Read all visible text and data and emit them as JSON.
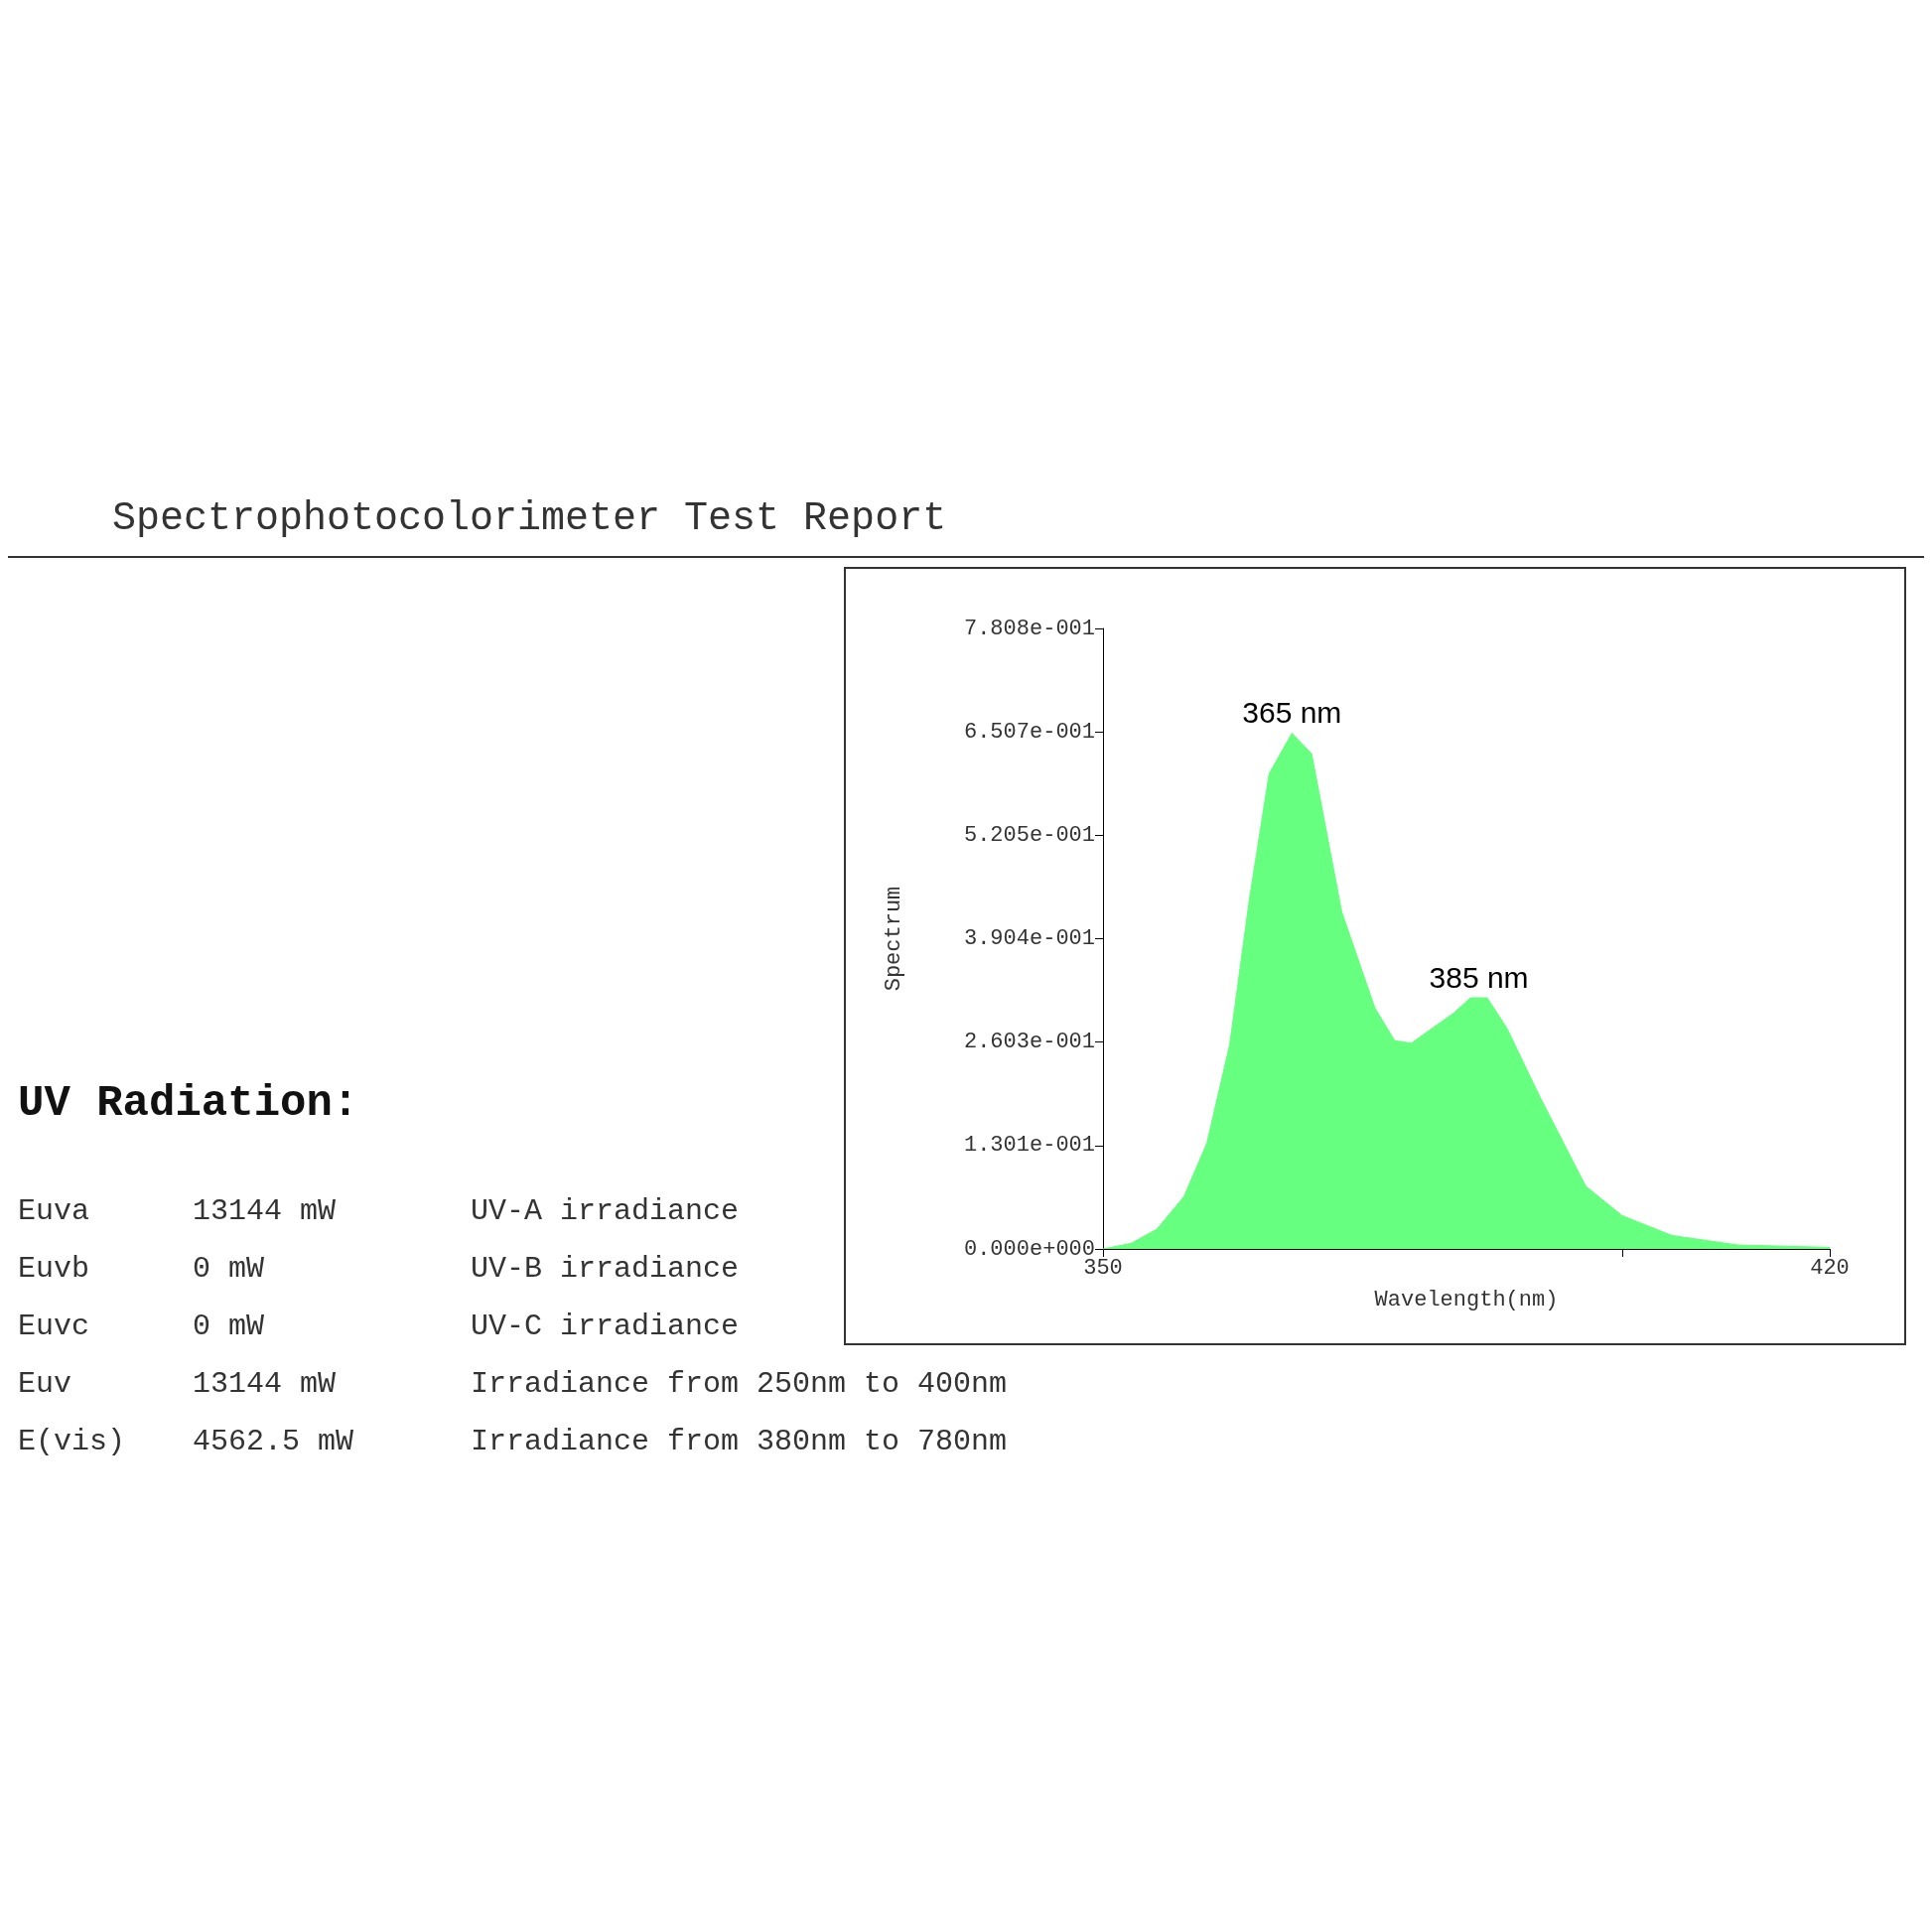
{
  "chart_data": {
    "type": "area",
    "title": "Spectrophotocolorimeter Test Report",
    "xlabel": "Wavelength(nm)",
    "ylabel": "Spectrum",
    "x": [
      350,
      352.7,
      355.2,
      357.8,
      360,
      362.2,
      364.1,
      366,
      368.2,
      370.1,
      373,
      376.2,
      378.1,
      379.7,
      383.8,
      385.4,
      387,
      388.9,
      392.1,
      396.5,
      400,
      404.8,
      411.1,
      420
    ],
    "series": [
      {
        "color": "#66ff7f",
        "values": [
          0,
          0.007,
          0.025,
          0.066,
          0.133,
          0.257,
          0.44,
          0.598,
          0.649,
          0.623,
          0.424,
          0.303,
          0.262,
          0.259,
          0.297,
          0.316,
          0.316,
          0.278,
          0.191,
          0.079,
          0.042,
          0.017,
          0.005,
          0.002
        ]
      }
    ],
    "xlim": [
      350,
      420
    ],
    "xticks": [
      350,
      {
        "value": 400,
        "label": null
      },
      420
    ],
    "ylim": [
      0,
      0.7808
    ],
    "yticks": [
      {
        "value": 0,
        "label": "0.000e+000"
      },
      {
        "value": 0.1301,
        "label": "1.301e-001"
      },
      {
        "value": 0.2603,
        "label": "2.603e-001"
      },
      {
        "value": 0.3904,
        "label": "3.904e-001"
      },
      {
        "value": 0.5205,
        "label": "5.205e-001"
      },
      {
        "value": 0.6507,
        "label": "6.507e-001"
      },
      {
        "value": 0.7808,
        "label": "7.808e-001"
      }
    ],
    "grid": false,
    "marker": "none",
    "annotations": [
      {
        "text": "365 nm",
        "x": 368.2,
        "y": 0.649
      },
      {
        "text": "385 nm",
        "x": 386.2,
        "y": 0.316
      },
      "UV Radiation:",
      "Euva",
      "13144 mW",
      "UV-A irradiance",
      "Euvb",
      "0 mW",
      "UV-B irradiance",
      "Euvc",
      "0 mW",
      "UV-C irradiance",
      "Euv",
      "13144 mW",
      "Irradiance from 250nm to 400nm",
      "E(vis)",
      "4562.5 mW",
      "Irradiance from 380nm to 780nm"
    ]
  }
}
